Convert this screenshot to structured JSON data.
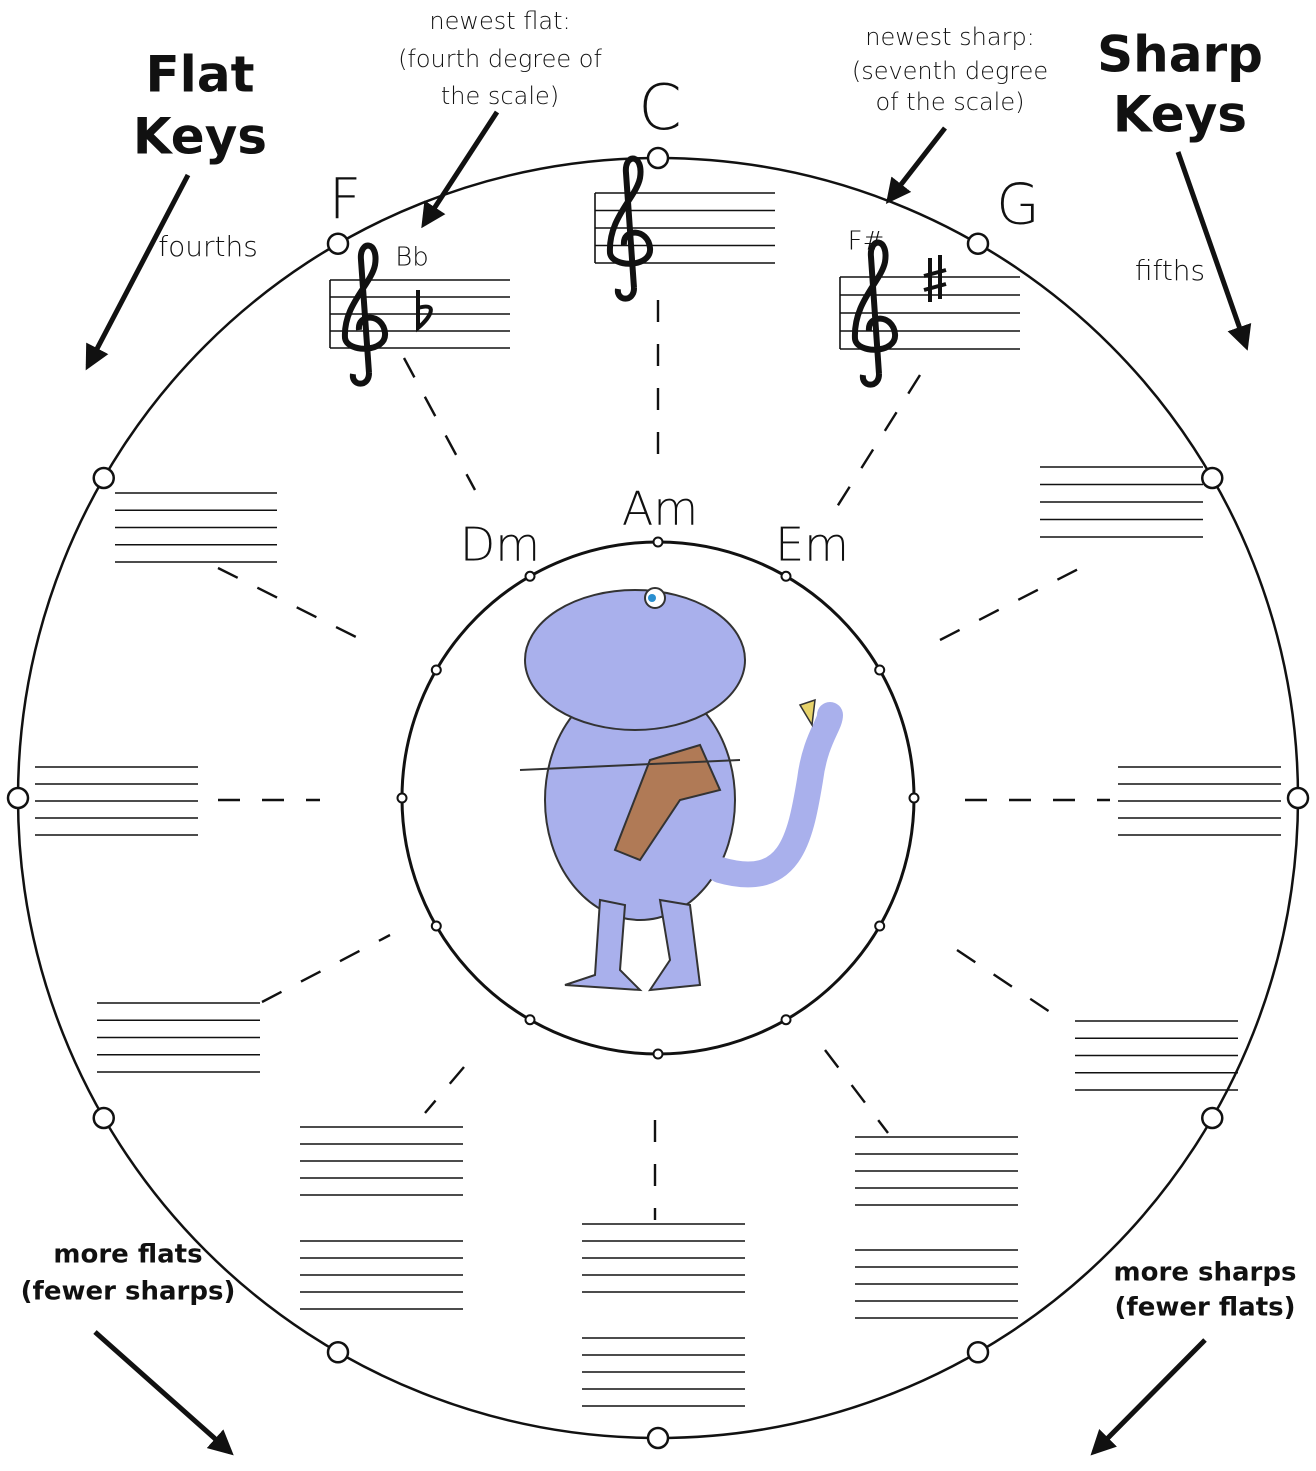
{
  "headings": {
    "flat_keys": [
      "Flat",
      "Keys"
    ],
    "sharp_keys": [
      "Sharp",
      "Keys"
    ]
  },
  "interval_labels": {
    "fourths": "fourths",
    "fifths": "fifths"
  },
  "annotations": {
    "newest_flat": [
      "newest flat:",
      "(fourth degree of",
      "the scale)"
    ],
    "newest_sharp": [
      "newest sharp:",
      "(seventh degree",
      "of the scale)"
    ]
  },
  "major_keys": {
    "top": "C",
    "left": "F",
    "right": "G"
  },
  "accidental_labels": {
    "flat": "Bb",
    "sharp": "F#"
  },
  "minor_keys": {
    "top": "Am",
    "left": "Dm",
    "right": "Em"
  },
  "footnotes": {
    "more_flats": [
      "more flats",
      "(fewer sharps)"
    ],
    "more_sharps": [
      "more sharps",
      "(fewer flats)"
    ]
  }
}
